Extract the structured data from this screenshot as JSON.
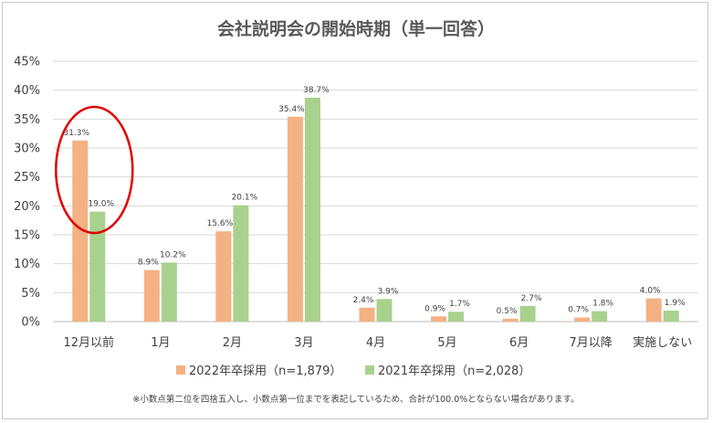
{
  "chart_data": {
    "type": "bar",
    "title": "会社説明会の開始時期（単一回答）",
    "xlabel": "",
    "ylabel": "",
    "ylim": [
      0,
      45
    ],
    "yticks": [
      "0%",
      "5%",
      "10%",
      "15%",
      "20%",
      "25%",
      "30%",
      "35%",
      "40%",
      "45%"
    ],
    "grid": true,
    "legend_position": "bottom",
    "categories": [
      "12月以前",
      "1月",
      "2月",
      "3月",
      "4月",
      "5月",
      "6月",
      "7月以降",
      "実施しない"
    ],
    "series": [
      {
        "name": "2022年卒採用（n=1,879）",
        "color": "#f4b183",
        "values": [
          31.3,
          8.9,
          15.6,
          35.4,
          2.4,
          0.9,
          0.5,
          0.7,
          4.0
        ],
        "labels": [
          "31.3%",
          "8.9%",
          "15.6%",
          "35.4%",
          "2.4%",
          "0.9%",
          "0.5%",
          "0.7%",
          "4.0%"
        ]
      },
      {
        "name": "2021年卒採用（n=2,028）",
        "color": "#a9d18e",
        "values": [
          19.0,
          10.2,
          20.1,
          38.7,
          3.9,
          1.7,
          2.7,
          1.8,
          1.9
        ],
        "labels": [
          "19.0%",
          "10.2%",
          "20.1%",
          "38.7%",
          "3.9%",
          "1.7%",
          "2.7%",
          "1.8%",
          "1.9%"
        ]
      }
    ],
    "annotation": {
      "type": "ellipse",
      "target_category": "12月以前",
      "color": "#e00000"
    },
    "note": "※小数点第二位を四捨五入し、小数点第一位までを表記しているため、合計が100.0%とならない場合があります。"
  }
}
